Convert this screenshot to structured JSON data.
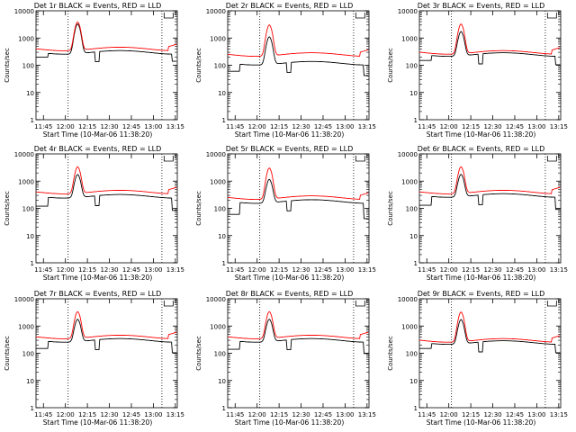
{
  "chart_data": [
    {
      "title": "Det 1r BLACK = Events, RED = LLD",
      "type": "line",
      "ylabel": "Counts/sec",
      "xlabel": "Start Time (10-Mar-06 11:38:20)",
      "black_base": 300,
      "black_peak": 3000,
      "red_base": 400,
      "red_peak": 3500,
      "black_low": 200,
      "ylim": [
        1,
        10000
      ],
      "yscale": "log",
      "xticks": [
        "11:45",
        "12:00",
        "12:15",
        "12:30",
        "12:45",
        "13:00",
        "13:15"
      ],
      "yticks": [
        "1",
        "10",
        "100",
        "1000",
        "10000"
      ],
      "series": [
        {
          "name": "Events",
          "color": "#000000"
        },
        {
          "name": "LLD",
          "color": "#ff0000"
        }
      ]
    },
    {
      "title": "Det 2r BLACK = Events, RED = LLD",
      "type": "line",
      "ylabel": "Counts/sec",
      "xlabel": "Start Time (10-Mar-06 11:38:20)",
      "black_base": 120,
      "black_peak": 1000,
      "red_base": 250,
      "red_peak": 2800,
      "black_low": 60,
      "ylim": [
        1,
        10000
      ],
      "yscale": "log",
      "xticks": [
        "11:45",
        "12:00",
        "12:15",
        "12:30",
        "12:45",
        "13:00",
        "13:15"
      ],
      "yticks": [
        "1",
        "10",
        "100",
        "1000",
        "10000"
      ],
      "series": [
        {
          "name": "Events",
          "color": "#000000"
        },
        {
          "name": "LLD",
          "color": "#ff0000"
        }
      ]
    },
    {
      "title": "Det 3r BLACK = Events, RED = LLD",
      "type": "line",
      "ylabel": "Counts/sec",
      "xlabel": "Start Time (10-Mar-06 11:38:20)",
      "black_base": 250,
      "black_peak": 1500,
      "red_base": 300,
      "red_peak": 3000,
      "black_low": 150,
      "ylim": [
        1,
        10000
      ],
      "yscale": "log",
      "xticks": [
        "11:45",
        "12:00",
        "12:15",
        "12:30",
        "12:45",
        "13:00",
        "13:15"
      ],
      "yticks": [
        "1",
        "10",
        "100",
        "1000",
        "10000"
      ],
      "series": [
        {
          "name": "Events",
          "color": "#000000"
        },
        {
          "name": "LLD",
          "color": "#ff0000"
        }
      ]
    },
    {
      "title": "Det 4r BLACK = Events, RED = LLD",
      "type": "line",
      "ylabel": "Counts/sec",
      "xlabel": "Start Time (10-Mar-06 11:38:20)",
      "black_base": 280,
      "black_peak": 1500,
      "red_base": 400,
      "red_peak": 3000,
      "black_low": 120,
      "ylim": [
        1,
        10000
      ],
      "yscale": "log",
      "xticks": [
        "11:45",
        "12:00",
        "12:15",
        "12:30",
        "12:45",
        "13:00",
        "13:15"
      ],
      "yticks": [
        "1",
        "10",
        "100",
        "1000",
        "10000"
      ],
      "series": [
        {
          "name": "Events",
          "color": "#000000"
        },
        {
          "name": "LLD",
          "color": "#ff0000"
        }
      ]
    },
    {
      "title": "Det 5r BLACK = Events, RED = LLD",
      "type": "line",
      "ylabel": "Counts/sec",
      "xlabel": "Start Time (10-Mar-06 11:38:20)",
      "black_base": 180,
      "black_peak": 1000,
      "red_base": 250,
      "red_peak": 2800,
      "black_low": 60,
      "ylim": [
        1,
        10000
      ],
      "yscale": "log",
      "xticks": [
        "11:45",
        "12:00",
        "12:15",
        "12:30",
        "12:45",
        "13:00",
        "13:15"
      ],
      "yticks": [
        "1",
        "10",
        "100",
        "1000",
        "10000"
      ],
      "series": [
        {
          "name": "Events",
          "color": "#000000"
        },
        {
          "name": "LLD",
          "color": "#ff0000"
        }
      ]
    },
    {
      "title": "Det 6r BLACK = Events, RED = LLD",
      "type": "line",
      "ylabel": "Counts/sec",
      "xlabel": "Start Time (10-Mar-06 11:38:20)",
      "black_base": 300,
      "black_peak": 1500,
      "red_base": 400,
      "red_peak": 3000,
      "black_low": 130,
      "ylim": [
        1,
        10000
      ],
      "yscale": "log",
      "xticks": [
        "11:45",
        "12:00",
        "12:15",
        "12:30",
        "12:45",
        "13:00",
        "13:15"
      ],
      "yticks": [
        "1",
        "10",
        "100",
        "1000",
        "10000"
      ],
      "series": [
        {
          "name": "Events",
          "color": "#000000"
        },
        {
          "name": "LLD",
          "color": "#ff0000"
        }
      ]
    },
    {
      "title": "Det 7r BLACK = Events, RED = LLD",
      "type": "line",
      "ylabel": "Counts/sec",
      "xlabel": "Start Time (10-Mar-06 11:38:20)",
      "black_base": 300,
      "black_peak": 1500,
      "red_base": 400,
      "red_peak": 3000,
      "black_low": 150,
      "ylim": [
        1,
        10000
      ],
      "yscale": "log",
      "xticks": [
        "11:45",
        "12:00",
        "12:15",
        "12:30",
        "12:45",
        "13:00",
        "13:15"
      ],
      "yticks": [
        "1",
        "10",
        "100",
        "1000",
        "10000"
      ],
      "series": [
        {
          "name": "Events",
          "color": "#000000"
        },
        {
          "name": "LLD",
          "color": "#ff0000"
        }
      ]
    },
    {
      "title": "Det 8r BLACK = Events, RED = LLD",
      "type": "line",
      "ylabel": "Counts/sec",
      "xlabel": "Start Time (10-Mar-06 11:38:20)",
      "black_base": 300,
      "black_peak": 1500,
      "red_base": 400,
      "red_peak": 3000,
      "black_low": 140,
      "ylim": [
        1,
        10000
      ],
      "yscale": "log",
      "xticks": [
        "11:45",
        "12:00",
        "12:15",
        "12:30",
        "12:45",
        "13:00",
        "13:15"
      ],
      "yticks": [
        "1",
        "10",
        "100",
        "1000",
        "10000"
      ],
      "series": [
        {
          "name": "Events",
          "color": "#000000"
        },
        {
          "name": "LLD",
          "color": "#ff0000"
        }
      ]
    },
    {
      "title": "Det 9r BLACK = Events, RED = LLD",
      "type": "line",
      "ylabel": "Counts/sec",
      "xlabel": "Start Time (10-Mar-06 11:38:20)",
      "black_base": 250,
      "black_peak": 1500,
      "red_base": 300,
      "red_peak": 3000,
      "black_low": 150,
      "ylim": [
        1,
        10000
      ],
      "yscale": "log",
      "xticks": [
        "11:45",
        "12:00",
        "12:15",
        "12:30",
        "12:45",
        "13:00",
        "13:15"
      ],
      "yticks": [
        "1",
        "10",
        "100",
        "1000",
        "10000"
      ],
      "series": [
        {
          "name": "Events",
          "color": "#000000"
        },
        {
          "name": "LLD",
          "color": "#ff0000"
        }
      ]
    }
  ]
}
